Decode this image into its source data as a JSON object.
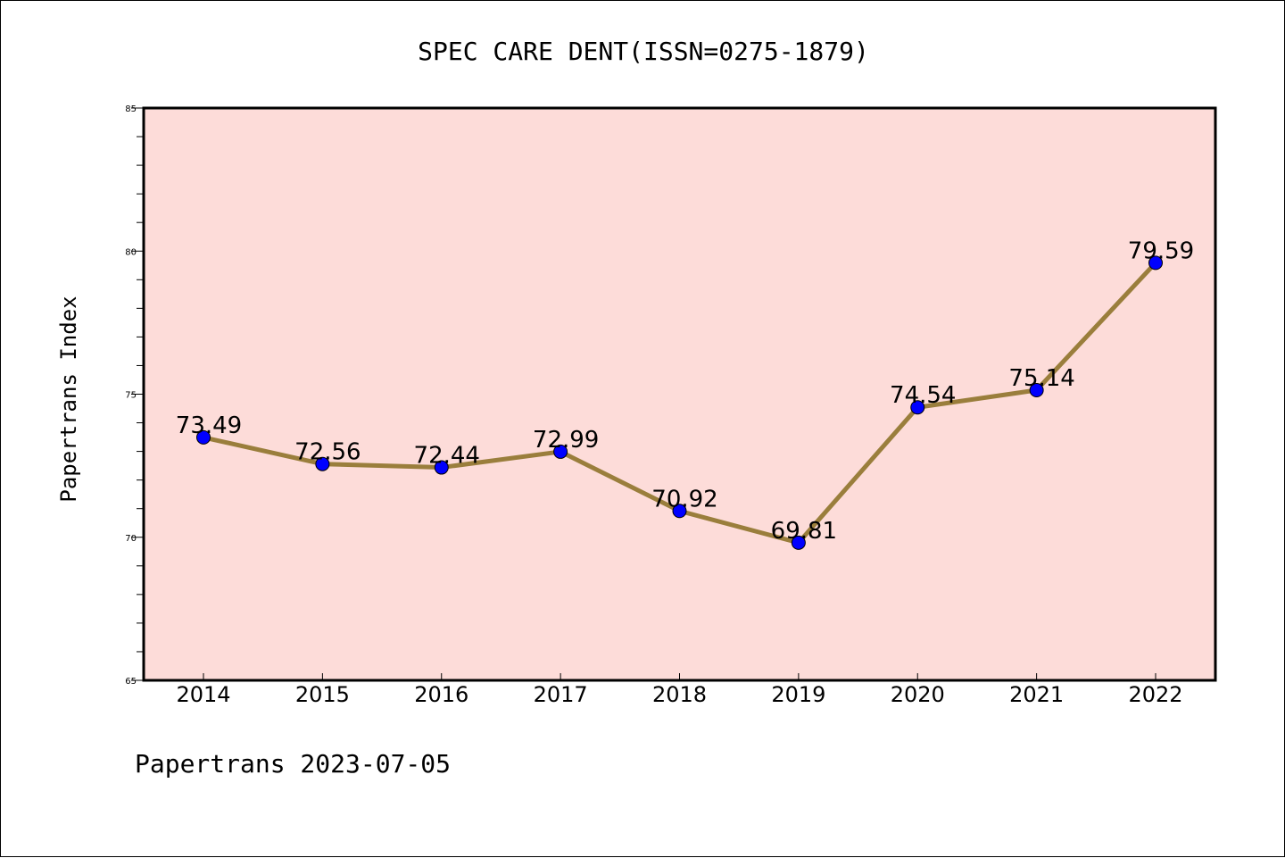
{
  "chart_data": {
    "type": "line",
    "title": "SPEC CARE DENT(ISSN=0275-1879)",
    "ylabel": "Papertrans Index",
    "xlabel": "",
    "footer": "Papertrans 2023-07-05",
    "categories": [
      "2014",
      "2015",
      "2016",
      "2017",
      "2018",
      "2019",
      "2020",
      "2021",
      "2022"
    ],
    "series": [
      {
        "values": [
          73.49,
          72.56,
          72.44,
          72.99,
          70.92,
          69.81,
          74.54,
          75.14,
          79.59
        ],
        "labels": [
          "73.49",
          "72.56",
          "72.44",
          "72.99",
          "70.92",
          "69.81",
          "74.54",
          "75.14",
          "79.59"
        ],
        "line_color": "#9a7e3c",
        "marker_color": "#0000ff"
      }
    ],
    "ylim": [
      65,
      85
    ],
    "yticks": [
      "65",
      "70",
      "75",
      "80",
      "85"
    ],
    "grid": false,
    "legend": "none",
    "plot_background": "#fddcd9"
  }
}
